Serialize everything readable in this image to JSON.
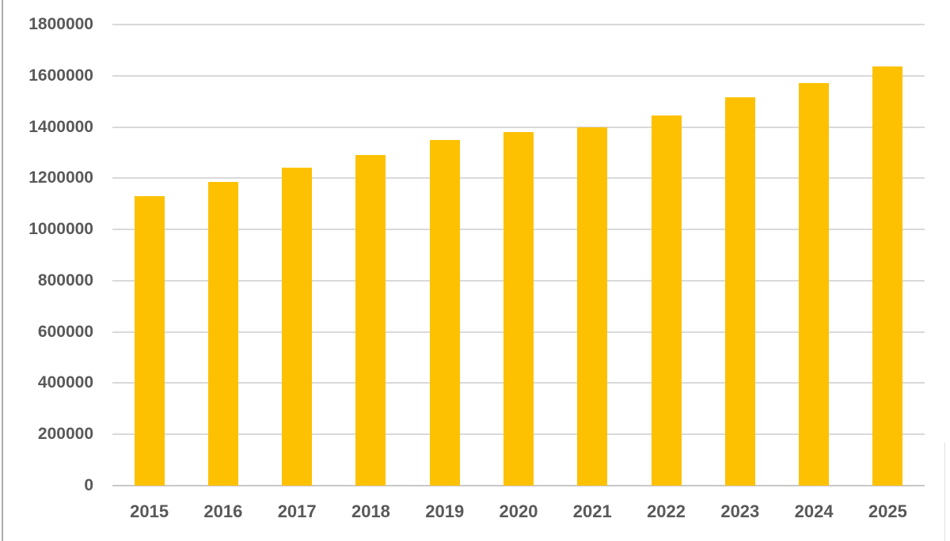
{
  "chart_data": {
    "type": "bar",
    "title": "",
    "xlabel": "",
    "ylabel": "",
    "categories": [
      "2015",
      "2016",
      "2017",
      "2018",
      "2019",
      "2020",
      "2021",
      "2022",
      "2023",
      "2024",
      "2025"
    ],
    "values": [
      1130000,
      1185000,
      1240000,
      1290000,
      1350000,
      1380000,
      1400000,
      1445000,
      1515000,
      1570000,
      1635000
    ],
    "ylim": [
      0,
      1800000
    ],
    "y_ticks": [
      0,
      200000,
      400000,
      600000,
      800000,
      1000000,
      1200000,
      1400000,
      1600000,
      1800000
    ],
    "y_tick_labels": [
      "0",
      "200000",
      "400000",
      "600000",
      "800000",
      "1000000",
      "1200000",
      "1400000",
      "1600000",
      "1800000"
    ],
    "grid": true,
    "legend_visible": false,
    "bar_color": "#FDC101",
    "gridline_color": "#D9D9D9",
    "axis_line_color": "#C8C8C8",
    "tick_label_color": "#595959"
  }
}
